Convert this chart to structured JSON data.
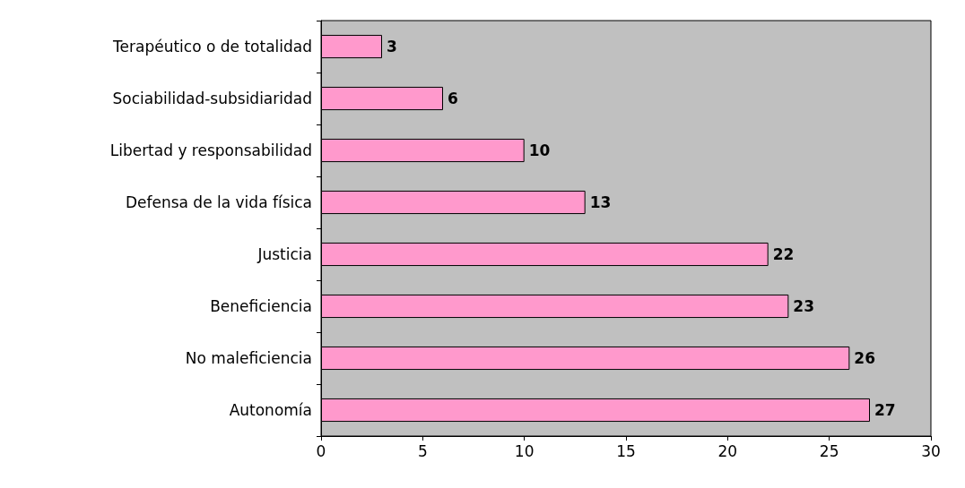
{
  "chart_data": {
    "type": "bar",
    "orientation": "horizontal",
    "categories": [
      "Terapéutico o de totalidad",
      "Sociabilidad-subsidiaridad",
      "Libertad y responsabilidad",
      "Defensa de la vida física",
      "Justicia",
      "Beneficiencia",
      "No maleficiencia",
      "Autonomía"
    ],
    "values": [
      3,
      6,
      10,
      13,
      22,
      23,
      26,
      27
    ],
    "color": "#ff99cc",
    "xlim": [
      0,
      30
    ],
    "xticks": [
      0,
      5,
      10,
      15,
      20,
      25,
      30
    ],
    "grid": false,
    "data_labels": true
  }
}
